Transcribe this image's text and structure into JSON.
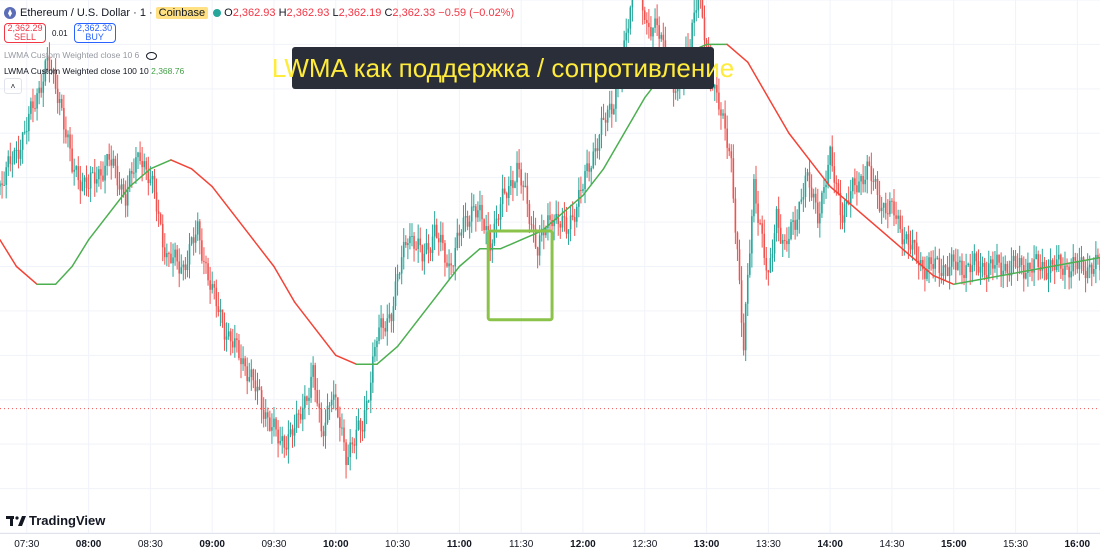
{
  "header": {
    "symbol": "Ethereum / U.S. Dollar · 1 ·",
    "exchange": "Coinbase",
    "o_label": "O",
    "o_value": "2,362.93",
    "h_label": "H",
    "h_value": "2,362.93",
    "l_label": "L",
    "l_value": "2,362.19",
    "c_label": "C",
    "c_value": "2,362.33",
    "change": "−0.59 (−0.02%)"
  },
  "trade": {
    "sell_price": "2,362.29",
    "sell_label": "SELL",
    "spread": "0.01",
    "buy_price": "2,362.30",
    "buy_label": "BUY"
  },
  "indicators": [
    {
      "label": "LWMA Custom Weighted close 10 6",
      "value": ""
    },
    {
      "label": "LWMA Custom Weighted close 100 10",
      "value": "2,368.76"
    }
  ],
  "collapse_label": "˄",
  "annotation": "LWMA как поддержка / сопротивление",
  "logo": "TradingView",
  "colors": {
    "up": "#26a69a",
    "down": "#ef5350",
    "lwma_up": "#4caf50",
    "lwma_down": "#f44336",
    "highlight": "#8bc34a"
  },
  "icons": [
    "ethereum-icon",
    "market-open-dot-icon",
    "eye-off-icon",
    "chevron-up-icon",
    "tradingview-logo-icon"
  ],
  "chart_data": {
    "type": "candlestick",
    "x_ticks": [
      "07:30",
      "08:00",
      "08:30",
      "09:00",
      "09:30",
      "10:00",
      "10:30",
      "11:00",
      "11:30",
      "12:00",
      "12:30",
      "13:00",
      "13:30",
      "14:00",
      "14:30",
      "15:00",
      "15:30",
      "16:00"
    ],
    "major_ticks": [
      "08:00",
      "09:00",
      "10:00",
      "11:00",
      "12:00",
      "13:00",
      "14:00",
      "15:00",
      "16:00"
    ],
    "x_range_minutes": [
      437,
      971
    ],
    "y_range": [
      2336,
      2396
    ],
    "last_close": 2362.33,
    "price_path": [
      [
        437,
        2375
      ],
      [
        449,
        2381
      ],
      [
        460,
        2389
      ],
      [
        466,
        2385
      ],
      [
        472,
        2377
      ],
      [
        480,
        2375
      ],
      [
        490,
        2378
      ],
      [
        498,
        2374
      ],
      [
        505,
        2379
      ],
      [
        512,
        2374
      ],
      [
        518,
        2367
      ],
      [
        526,
        2366
      ],
      [
        533,
        2370
      ],
      [
        540,
        2363
      ],
      [
        548,
        2358
      ],
      [
        556,
        2355
      ],
      [
        565,
        2350
      ],
      [
        573,
        2346
      ],
      [
        581,
        2348
      ],
      [
        589,
        2354
      ],
      [
        593,
        2347
      ],
      [
        598,
        2352
      ],
      [
        605,
        2345
      ],
      [
        613,
        2348
      ],
      [
        620,
        2358
      ],
      [
        627,
        2361
      ],
      [
        635,
        2370
      ],
      [
        642,
        2367
      ],
      [
        648,
        2370
      ],
      [
        655,
        2366
      ],
      [
        661,
        2370
      ],
      [
        667,
        2373
      ],
      [
        675,
        2369
      ],
      [
        682,
        2374
      ],
      [
        688,
        2377
      ],
      [
        693,
        2373
      ],
      [
        698,
        2368
      ],
      [
        705,
        2372
      ],
      [
        712,
        2370
      ],
      [
        720,
        2375
      ],
      [
        728,
        2381
      ],
      [
        734,
        2384
      ],
      [
        740,
        2390
      ],
      [
        746,
        2400
      ],
      [
        751,
        2392
      ],
      [
        756,
        2394
      ],
      [
        761,
        2388
      ],
      [
        766,
        2386
      ],
      [
        772,
        2391
      ],
      [
        776,
        2398
      ],
      [
        781,
        2388
      ],
      [
        786,
        2385
      ],
      [
        792,
        2377
      ],
      [
        795,
        2368
      ],
      [
        798,
        2357
      ],
      [
        803,
        2375
      ],
      [
        806,
        2371
      ],
      [
        810,
        2364
      ],
      [
        814,
        2372
      ],
      [
        818,
        2368
      ],
      [
        823,
        2371
      ],
      [
        828,
        2376
      ],
      [
        834,
        2372
      ],
      [
        840,
        2378
      ],
      [
        846,
        2372
      ],
      [
        852,
        2375
      ],
      [
        858,
        2377
      ],
      [
        865,
        2373
      ],
      [
        871,
        2372
      ],
      [
        877,
        2369
      ],
      [
        885,
        2366
      ]
    ],
    "lwma_fast_path": [
      [
        437,
        2369
      ],
      [
        452,
        2366
      ],
      [
        470,
        2364
      ],
      [
        485,
        2366
      ],
      [
        495,
        2371
      ],
      [
        505,
        2375
      ],
      [
        520,
        2377
      ],
      [
        535,
        2375
      ],
      [
        550,
        2368
      ],
      [
        565,
        2360
      ],
      [
        580,
        2354
      ],
      [
        592,
        2351
      ],
      [
        605,
        2353
      ],
      [
        620,
        2359
      ],
      [
        640,
        2365
      ],
      [
        660,
        2370
      ],
      [
        680,
        2373
      ],
      [
        700,
        2376
      ],
      [
        715,
        2380
      ],
      [
        725,
        2385
      ],
      [
        735,
        2389
      ],
      [
        748,
        2392
      ],
      [
        760,
        2393
      ],
      [
        770,
        2390
      ],
      [
        780,
        2386
      ],
      [
        790,
        2380
      ],
      [
        800,
        2377
      ],
      [
        810,
        2375
      ],
      [
        820,
        2377
      ],
      [
        835,
        2374
      ],
      [
        850,
        2371
      ],
      [
        865,
        2368
      ],
      [
        885,
        2367
      ]
    ],
    "lwma_slow_path": [
      [
        437,
        2369
      ],
      [
        452,
        2366
      ],
      [
        470,
        2364
      ],
      [
        485,
        2366
      ],
      [
        495,
        2371
      ],
      [
        505,
        2375
      ],
      [
        520,
        2377
      ],
      [
        535,
        2375
      ],
      [
        550,
        2368
      ],
      [
        565,
        2360
      ],
      [
        580,
        2354
      ],
      [
        592,
        2351
      ],
      [
        605,
        2353
      ],
      [
        620,
        2359
      ],
      [
        640,
        2365
      ],
      [
        660,
        2370
      ],
      [
        680,
        2373
      ],
      [
        700,
        2376
      ],
      [
        715,
        2380
      ],
      [
        725,
        2385
      ],
      [
        735,
        2389
      ],
      [
        748,
        2392
      ],
      [
        760,
        2393
      ],
      [
        770,
        2390
      ],
      [
        780,
        2386
      ],
      [
        790,
        2380
      ],
      [
        800,
        2377
      ],
      [
        810,
        2375
      ],
      [
        820,
        2377
      ],
      [
        835,
        2374
      ],
      [
        850,
        2371
      ],
      [
        865,
        2368
      ],
      [
        885,
        2367
      ]
    ],
    "lwma_series": [
      {
        "name": "LWMA Custom Weighted close 100 10",
        "values": [
          [
            437,
            2369
          ],
          [
            445,
            2366
          ],
          [
            455,
            2364
          ],
          [
            464,
            2364
          ],
          [
            472,
            2366
          ],
          [
            480,
            2369
          ],
          [
            490,
            2372
          ],
          [
            500,
            2375
          ],
          [
            510,
            2377
          ],
          [
            520,
            2378
          ],
          [
            530,
            2377
          ],
          [
            540,
            2375
          ],
          [
            550,
            2372
          ],
          [
            560,
            2369
          ],
          [
            570,
            2366
          ],
          [
            580,
            2362
          ],
          [
            590,
            2359
          ],
          [
            600,
            2356
          ],
          [
            610,
            2355
          ],
          [
            620,
            2355
          ],
          [
            630,
            2357
          ],
          [
            640,
            2360
          ],
          [
            650,
            2363
          ],
          [
            660,
            2366
          ],
          [
            670,
            2368
          ],
          [
            680,
            2368
          ],
          [
            690,
            2369
          ],
          [
            700,
            2370
          ],
          [
            710,
            2372
          ],
          [
            720,
            2374
          ],
          [
            730,
            2377
          ],
          [
            740,
            2381
          ],
          [
            750,
            2385
          ],
          [
            760,
            2388
          ],
          [
            770,
            2390
          ],
          [
            780,
            2391
          ],
          [
            790,
            2391
          ],
          [
            800,
            2389
          ],
          [
            810,
            2385
          ],
          [
            820,
            2381
          ],
          [
            830,
            2378
          ],
          [
            840,
            2375
          ],
          [
            850,
            2373
          ],
          [
            860,
            2371
          ],
          [
            870,
            2369
          ],
          [
            880,
            2367
          ],
          [
            890,
            2365
          ],
          [
            900,
            2364
          ],
          [
            971,
            2367
          ]
        ]
      }
    ],
    "highlight_box": {
      "x_range_minutes": [
        674,
        705
      ],
      "y_range": [
        2360,
        2370
      ]
    },
    "horizontal_line": 2350
  }
}
